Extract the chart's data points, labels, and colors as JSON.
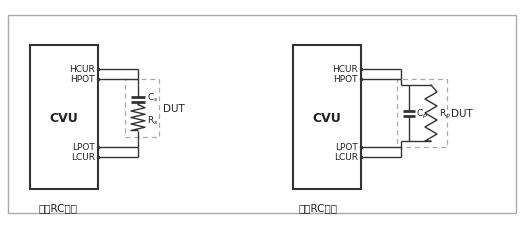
{
  "bg_color": "#ffffff",
  "outer_box_color": "#aaaaaa",
  "cvu_box_color": "#333333",
  "line_color": "#333333",
  "dashed_box_color": "#aaaaaa",
  "text_color": "#222222",
  "label1": "串联RC配置",
  "label2": "并联RC配置",
  "cvu_label": "CVU",
  "dut_label": "DUT",
  "hcur": "HCUR",
  "hpot": "HPOT",
  "lpot": "LPOT",
  "lcur": "LCUR"
}
